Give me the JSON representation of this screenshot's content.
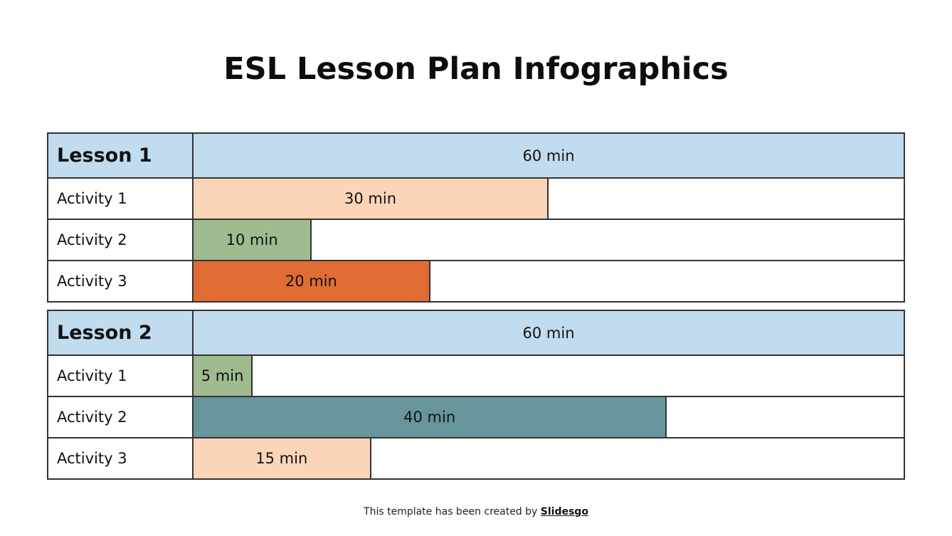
{
  "title": "ESL Lesson Plan Infographics",
  "scale_max_min": 60,
  "lessons": [
    {
      "label": "Lesson 1",
      "total": "60 min",
      "activities": [
        {
          "label": "Activity 1",
          "value": "30 min",
          "minutes": 30,
          "color": "#fcd5b8"
        },
        {
          "label": "Activity 2",
          "value": "10 min",
          "minutes": 10,
          "color": "#9fbb8f"
        },
        {
          "label": "Activity 3",
          "value": "20 min",
          "minutes": 20,
          "color": "#e06c33"
        }
      ]
    },
    {
      "label": "Lesson 2",
      "total": "60 min",
      "activities": [
        {
          "label": "Activity 1",
          "value": "5 min",
          "minutes": 5,
          "color": "#9fbb8f"
        },
        {
          "label": "Activity 2",
          "value": "40 min",
          "minutes": 40,
          "color": "#66969c"
        },
        {
          "label": "Activity 3",
          "value": "15 min",
          "minutes": 15,
          "color": "#fcd5b8"
        }
      ]
    }
  ],
  "colors": {
    "header_bg": "#c1dcee",
    "border": "#333333"
  },
  "footer": {
    "text": "This template has been created by ",
    "link": "Slidesgo"
  },
  "chart_data": {
    "type": "bar",
    "title": "ESL Lesson Plan Infographics",
    "orientation": "horizontal",
    "xlim": [
      0,
      60
    ],
    "unit": "min",
    "categories": [
      "Activity 1",
      "Activity 2",
      "Activity 3"
    ],
    "series": [
      {
        "name": "Lesson 1",
        "total": 60,
        "values": [
          30,
          10,
          20
        ]
      },
      {
        "name": "Lesson 2",
        "total": 60,
        "values": [
          5,
          40,
          15
        ]
      }
    ]
  }
}
